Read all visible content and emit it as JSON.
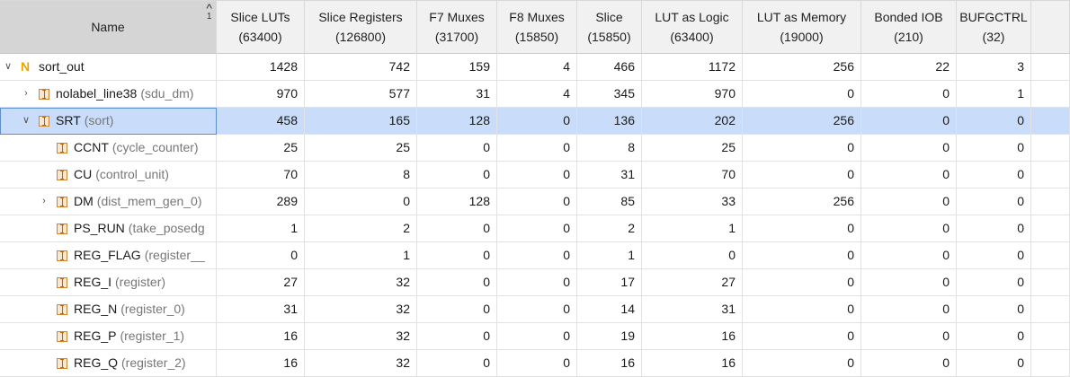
{
  "header": {
    "name": "Name",
    "sort_glyph": "^",
    "sort_order": "1",
    "columns": [
      {
        "l1": "Slice LUTs",
        "l2": "(63400)"
      },
      {
        "l1": "Slice Registers",
        "l2": "(126800)"
      },
      {
        "l1": "F7 Muxes",
        "l2": "(31700)"
      },
      {
        "l1": "F8 Muxes",
        "l2": "(15850)"
      },
      {
        "l1": "Slice",
        "l2": "(15850)"
      },
      {
        "l1": "LUT as Logic",
        "l2": "(63400)"
      },
      {
        "l1": "LUT as Memory",
        "l2": "(19000)"
      },
      {
        "l1": "Bonded IOB",
        "l2": "(210)"
      },
      {
        "l1": "BUFGCTRL",
        "l2": "(32)"
      }
    ]
  },
  "rows": [
    {
      "twisty": "∨",
      "icon": "N",
      "inst": "sort_out",
      "mod": "",
      "v": [
        "1428",
        "742",
        "159",
        "4",
        "466",
        "1172",
        "256",
        "22",
        "3"
      ]
    },
    {
      "twisty": "›",
      "icon": "I",
      "inst": "nolabel_line38",
      "mod": "(sdu_dm)",
      "v": [
        "970",
        "577",
        "31",
        "4",
        "345",
        "970",
        "0",
        "0",
        "1"
      ]
    },
    {
      "twisty": "∨",
      "icon": "I",
      "inst": "SRT",
      "mod": "(sort)",
      "v": [
        "458",
        "165",
        "128",
        "0",
        "136",
        "202",
        "256",
        "0",
        "0"
      ]
    },
    {
      "twisty": "",
      "icon": "I",
      "inst": "CCNT",
      "mod": "(cycle_counter)",
      "v": [
        "25",
        "25",
        "0",
        "0",
        "8",
        "25",
        "0",
        "0",
        "0"
      ]
    },
    {
      "twisty": "",
      "icon": "I",
      "inst": "CU",
      "mod": "(control_unit)",
      "v": [
        "70",
        "8",
        "0",
        "0",
        "31",
        "70",
        "0",
        "0",
        "0"
      ]
    },
    {
      "twisty": "›",
      "icon": "I",
      "inst": "DM",
      "mod": "(dist_mem_gen_0)",
      "v": [
        "289",
        "0",
        "128",
        "0",
        "85",
        "33",
        "256",
        "0",
        "0"
      ]
    },
    {
      "twisty": "",
      "icon": "I",
      "inst": "PS_RUN",
      "mod": "(take_posedg",
      "v": [
        "1",
        "2",
        "0",
        "0",
        "2",
        "1",
        "0",
        "0",
        "0"
      ]
    },
    {
      "twisty": "",
      "icon": "I",
      "inst": "REG_FLAG",
      "mod": "(register__",
      "v": [
        "0",
        "1",
        "0",
        "0",
        "1",
        "0",
        "0",
        "0",
        "0"
      ]
    },
    {
      "twisty": "",
      "icon": "I",
      "inst": "REG_I",
      "mod": "(register)",
      "v": [
        "27",
        "32",
        "0",
        "0",
        "17",
        "27",
        "0",
        "0",
        "0"
      ]
    },
    {
      "twisty": "",
      "icon": "I",
      "inst": "REG_N",
      "mod": "(register_0)",
      "v": [
        "31",
        "32",
        "0",
        "0",
        "14",
        "31",
        "0",
        "0",
        "0"
      ]
    },
    {
      "twisty": "",
      "icon": "I",
      "inst": "REG_P",
      "mod": "(register_1)",
      "v": [
        "16",
        "32",
        "0",
        "0",
        "19",
        "16",
        "0",
        "0",
        "0"
      ]
    },
    {
      "twisty": "",
      "icon": "I",
      "inst": "REG_Q",
      "mod": "(register_2)",
      "v": [
        "16",
        "32",
        "0",
        "0",
        "16",
        "16",
        "0",
        "0",
        "0"
      ]
    }
  ],
  "colors": {
    "selected_row": "#c9dcf9",
    "name_header": "#d5d5d5",
    "instance_icon": "#d4832a",
    "netlist_icon": "#e6a700"
  }
}
